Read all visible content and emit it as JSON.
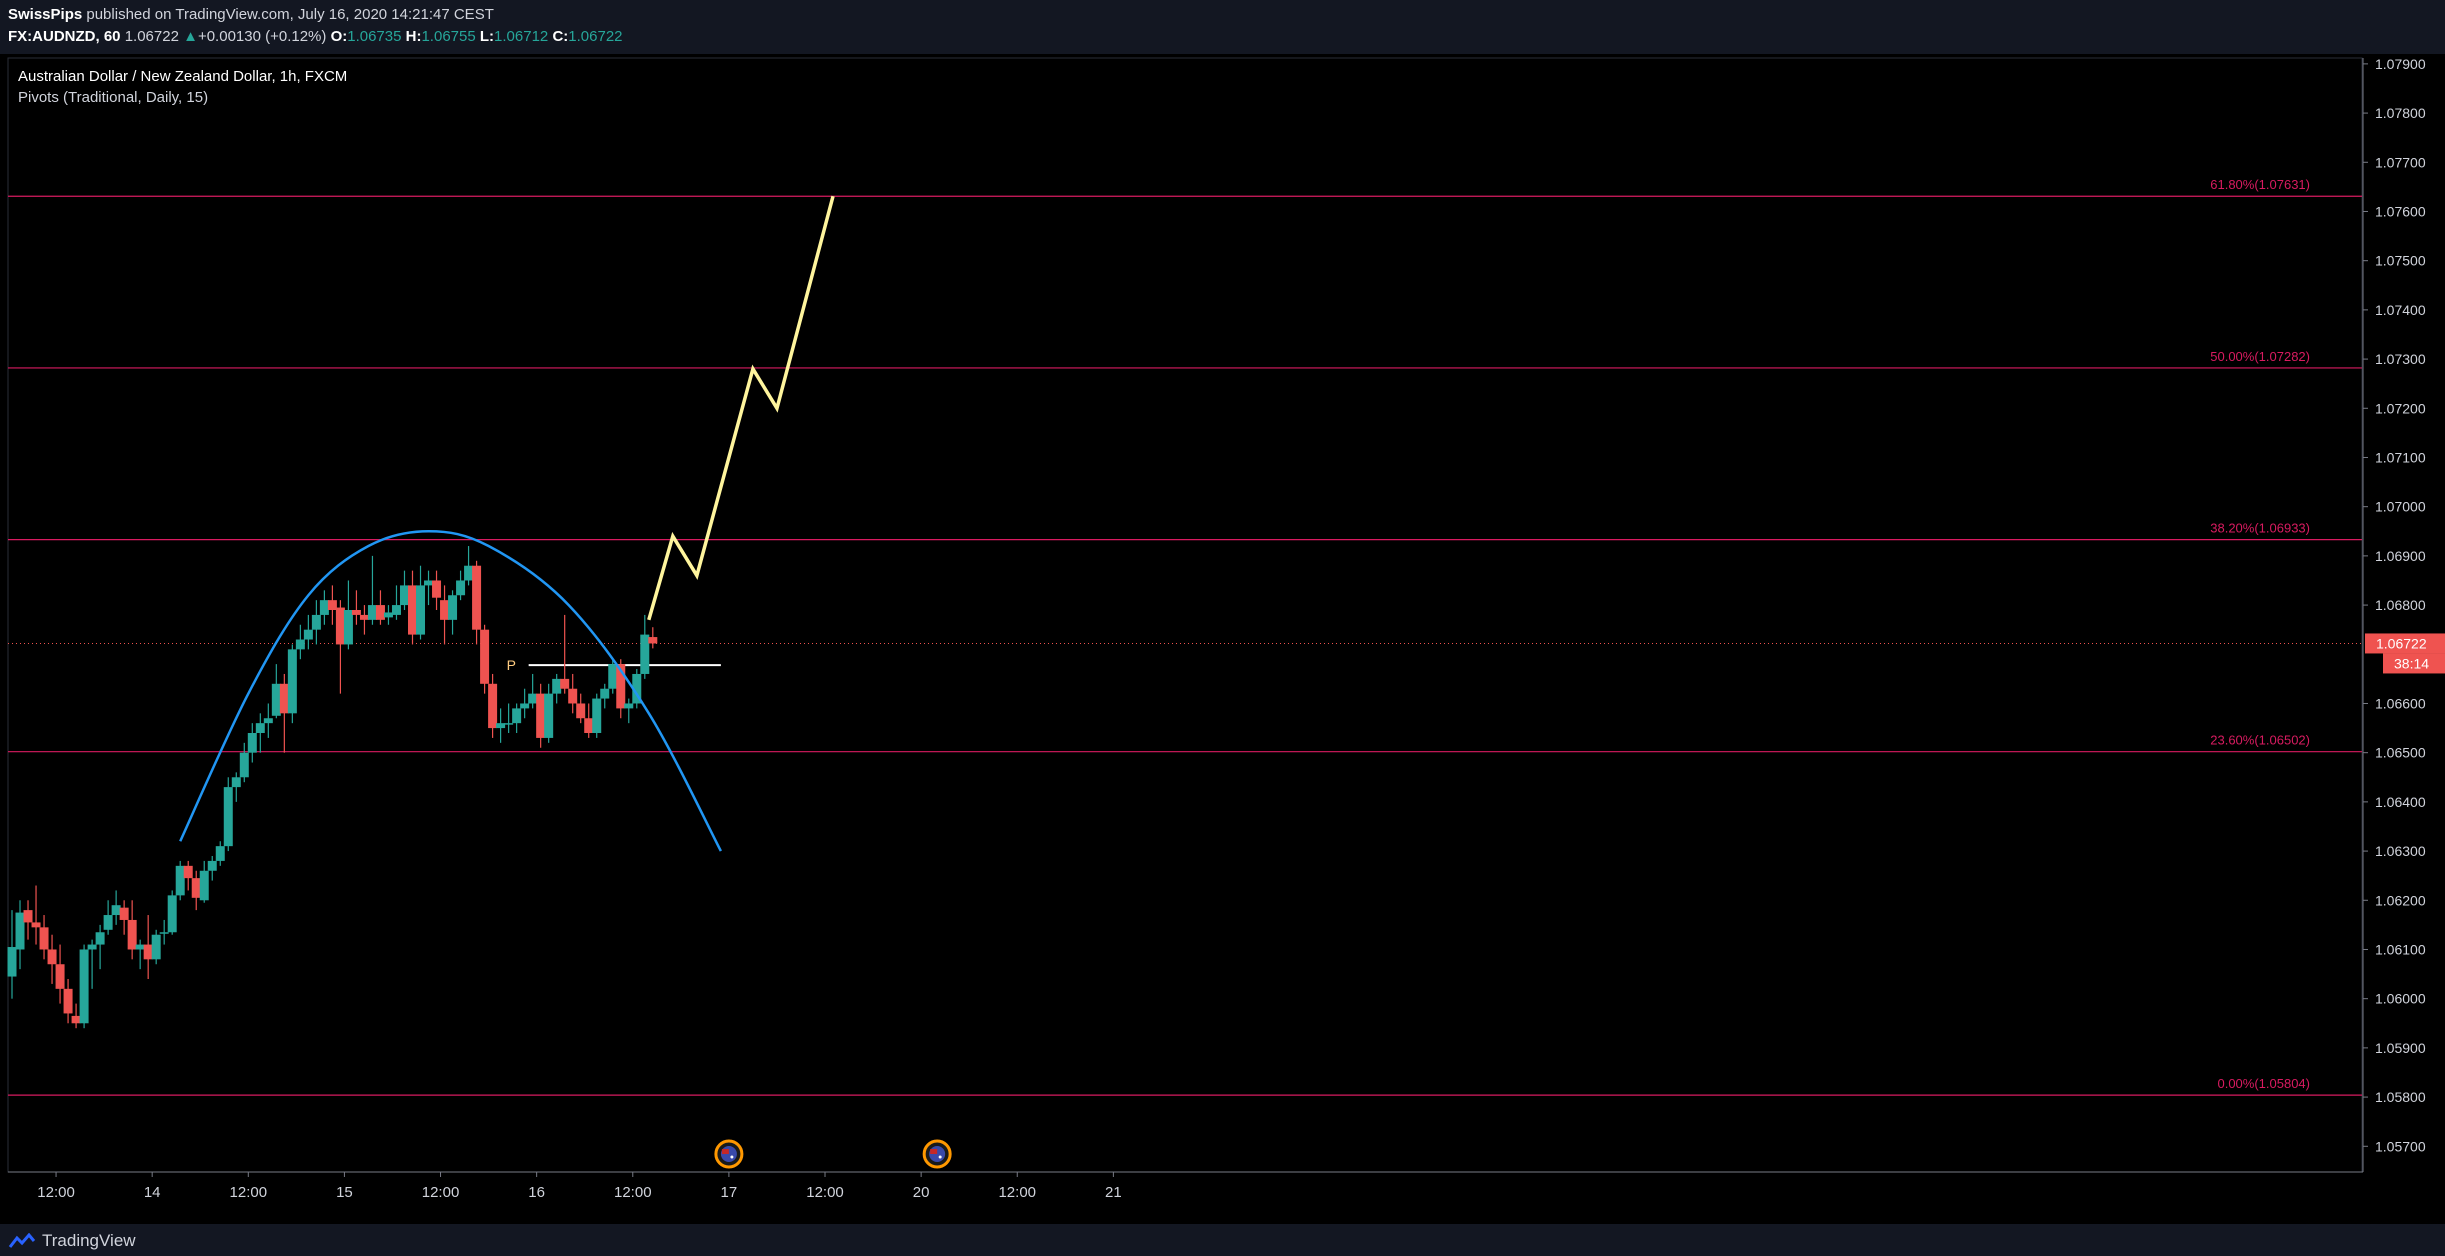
{
  "header": {
    "publisher_name": "SwissPips",
    "publisher_text": "published on TradingView.com, July 16, 2020 14:21:47 CEST",
    "symbol": "FX:AUDNZD, 60",
    "last": "1.06722",
    "change": "+0.00130 (+0.12%)",
    "open_label": "O:",
    "open": "1.06735",
    "high_label": "H:",
    "high": "1.06755",
    "low_label": "L:",
    "low": "1.06712",
    "close_label": "C:",
    "close": "1.06722"
  },
  "chart_title": "Australian Dollar / New Zealand Dollar, 1h, FXCM",
  "indicator_label": "Pivots (Traditional, Daily, 15)",
  "footer": {
    "brand": "TradingView"
  },
  "colors": {
    "background": "#000000",
    "up": "#26a69a",
    "down": "#ef5350",
    "fib": "#d81b60",
    "arc": "#2196f3",
    "projection": "#fff59d",
    "pivot": "#ffffff",
    "price_tag": "#ef5350"
  },
  "chart_data": {
    "type": "candlestick",
    "symbol": "AUDNZD",
    "timeframe": "1h",
    "ylim": [
      1.0566,
      1.0798
    ],
    "y_ticks": [
      "1.07900",
      "1.07800",
      "1.07700",
      "1.07600",
      "1.07500",
      "1.07400",
      "1.07300",
      "1.07200",
      "1.07100",
      "1.07000",
      "1.06900",
      "1.06800",
      "1.06600",
      "1.06500",
      "1.06400",
      "1.06300",
      "1.06200",
      "1.06100",
      "1.06000",
      "1.05900",
      "1.05800",
      "1.05700"
    ],
    "x_ticks": [
      {
        "label": "12:00",
        "t": 12
      },
      {
        "label": "14",
        "t": 36
      },
      {
        "label": "12:00",
        "t": 60
      },
      {
        "label": "15",
        "t": 84
      },
      {
        "label": "12:00",
        "t": 108
      },
      {
        "label": "16",
        "t": 132
      },
      {
        "label": "12:00",
        "t": 156
      },
      {
        "label": "17",
        "t": 180
      },
      {
        "label": "12:00",
        "t": 204
      },
      {
        "label": "20",
        "t": 228
      },
      {
        "label": "12:00",
        "t": 252
      },
      {
        "label": "21",
        "t": 276
      }
    ],
    "candles": [
      {
        "t": 1,
        "o": 1.06045,
        "h": 1.0618,
        "l": 1.06,
        "c": 1.06105
      },
      {
        "t": 3,
        "o": 1.061,
        "h": 1.062,
        "l": 1.0606,
        "c": 1.06175
      },
      {
        "t": 5,
        "o": 1.0618,
        "h": 1.062,
        "l": 1.0612,
        "c": 1.06155
      },
      {
        "t": 7,
        "o": 1.06155,
        "h": 1.0623,
        "l": 1.0611,
        "c": 1.06145
      },
      {
        "t": 9,
        "o": 1.06145,
        "h": 1.0617,
        "l": 1.0608,
        "c": 1.061
      },
      {
        "t": 11,
        "o": 1.061,
        "h": 1.0613,
        "l": 1.0603,
        "c": 1.0607
      },
      {
        "t": 13,
        "o": 1.0607,
        "h": 1.0611,
        "l": 1.0599,
        "c": 1.0602
      },
      {
        "t": 15,
        "o": 1.0602,
        "h": 1.0604,
        "l": 1.0595,
        "c": 1.0597
      },
      {
        "t": 17,
        "o": 1.05965,
        "h": 1.0599,
        "l": 1.0594,
        "c": 1.0595
      },
      {
        "t": 19,
        "o": 1.0595,
        "h": 1.0611,
        "l": 1.0594,
        "c": 1.061
      },
      {
        "t": 21,
        "o": 1.061,
        "h": 1.0612,
        "l": 1.0602,
        "c": 1.0611
      },
      {
        "t": 23,
        "o": 1.0611,
        "h": 1.0615,
        "l": 1.0606,
        "c": 1.06135
      },
      {
        "t": 25,
        "o": 1.0614,
        "h": 1.062,
        "l": 1.0613,
        "c": 1.0617
      },
      {
        "t": 27,
        "o": 1.0617,
        "h": 1.0622,
        "l": 1.0615,
        "c": 1.0619
      },
      {
        "t": 29,
        "o": 1.06185,
        "h": 1.062,
        "l": 1.0613,
        "c": 1.0616
      },
      {
        "t": 31,
        "o": 1.0616,
        "h": 1.062,
        "l": 1.0608,
        "c": 1.061
      },
      {
        "t": 33,
        "o": 1.061,
        "h": 1.0612,
        "l": 1.0606,
        "c": 1.0611
      },
      {
        "t": 35,
        "o": 1.0611,
        "h": 1.0617,
        "l": 1.0604,
        "c": 1.0608
      },
      {
        "t": 37,
        "o": 1.0608,
        "h": 1.0614,
        "l": 1.0607,
        "c": 1.0613
      },
      {
        "t": 39,
        "o": 1.06135,
        "h": 1.0616,
        "l": 1.0611,
        "c": 1.06135
      },
      {
        "t": 41,
        "o": 1.06135,
        "h": 1.0622,
        "l": 1.0613,
        "c": 1.0621
      },
      {
        "t": 43,
        "o": 1.0621,
        "h": 1.0628,
        "l": 1.062,
        "c": 1.0627
      },
      {
        "t": 45,
        "o": 1.0627,
        "h": 1.0628,
        "l": 1.0622,
        "c": 1.06245
      },
      {
        "t": 47,
        "o": 1.06245,
        "h": 1.0626,
        "l": 1.0618,
        "c": 1.06205
      },
      {
        "t": 49,
        "o": 1.062,
        "h": 1.0628,
        "l": 1.06195,
        "c": 1.0626
      },
      {
        "t": 51,
        "o": 1.0626,
        "h": 1.0629,
        "l": 1.0624,
        "c": 1.0628
      },
      {
        "t": 53,
        "o": 1.0628,
        "h": 1.0632,
        "l": 1.0627,
        "c": 1.0631
      },
      {
        "t": 55,
        "o": 1.0631,
        "h": 1.0645,
        "l": 1.063,
        "c": 1.0643
      },
      {
        "t": 57,
        "o": 1.0643,
        "h": 1.0646,
        "l": 1.064,
        "c": 1.0645
      },
      {
        "t": 59,
        "o": 1.0645,
        "h": 1.0652,
        "l": 1.0644,
        "c": 1.065
      },
      {
        "t": 61,
        "o": 1.065,
        "h": 1.0656,
        "l": 1.0648,
        "c": 1.0654
      },
      {
        "t": 63,
        "o": 1.0654,
        "h": 1.0658,
        "l": 1.065,
        "c": 1.0656
      },
      {
        "t": 65,
        "o": 1.0656,
        "h": 1.066,
        "l": 1.0653,
        "c": 1.0657
      },
      {
        "t": 67,
        "o": 1.06575,
        "h": 1.0668,
        "l": 1.0657,
        "c": 1.0664
      },
      {
        "t": 69,
        "o": 1.0664,
        "h": 1.0666,
        "l": 1.065,
        "c": 1.0658
      },
      {
        "t": 71,
        "o": 1.0658,
        "h": 1.0672,
        "l": 1.0656,
        "c": 1.0671
      },
      {
        "t": 73,
        "o": 1.0671,
        "h": 1.0676,
        "l": 1.0669,
        "c": 1.0673
      },
      {
        "t": 75,
        "o": 1.0673,
        "h": 1.0678,
        "l": 1.0671,
        "c": 1.0675
      },
      {
        "t": 77,
        "o": 1.0675,
        "h": 1.0681,
        "l": 1.0672,
        "c": 1.0678
      },
      {
        "t": 79,
        "o": 1.0678,
        "h": 1.0683,
        "l": 1.0676,
        "c": 1.0681
      },
      {
        "t": 81,
        "o": 1.0681,
        "h": 1.0684,
        "l": 1.0676,
        "c": 1.0679
      },
      {
        "t": 83,
        "o": 1.06795,
        "h": 1.0681,
        "l": 1.0662,
        "c": 1.0672
      },
      {
        "t": 85,
        "o": 1.0672,
        "h": 1.0685,
        "l": 1.0671,
        "c": 1.0679
      },
      {
        "t": 87,
        "o": 1.0679,
        "h": 1.0683,
        "l": 1.0676,
        "c": 1.0678
      },
      {
        "t": 89,
        "o": 1.0678,
        "h": 1.068,
        "l": 1.0674,
        "c": 1.0677
      },
      {
        "t": 91,
        "o": 1.0677,
        "h": 1.069,
        "l": 1.0676,
        "c": 1.068
      },
      {
        "t": 93,
        "o": 1.068,
        "h": 1.0683,
        "l": 1.0676,
        "c": 1.0677
      },
      {
        "t": 95,
        "o": 1.06775,
        "h": 1.068,
        "l": 1.0676,
        "c": 1.06785
      },
      {
        "t": 97,
        "o": 1.0678,
        "h": 1.0684,
        "l": 1.0677,
        "c": 1.068
      },
      {
        "t": 99,
        "o": 1.068,
        "h": 1.0687,
        "l": 1.0679,
        "c": 1.0684
      },
      {
        "t": 101,
        "o": 1.0684,
        "h": 1.0687,
        "l": 1.0672,
        "c": 1.0674
      },
      {
        "t": 103,
        "o": 1.0674,
        "h": 1.0688,
        "l": 1.0673,
        "c": 1.0684
      },
      {
        "t": 105,
        "o": 1.0684,
        "h": 1.0687,
        "l": 1.068,
        "c": 1.0685
      },
      {
        "t": 107,
        "o": 1.0685,
        "h": 1.0687,
        "l": 1.0679,
        "c": 1.06815
      },
      {
        "t": 109,
        "o": 1.0681,
        "h": 1.0684,
        "l": 1.0672,
        "c": 1.0677
      },
      {
        "t": 111,
        "o": 1.0677,
        "h": 1.0683,
        "l": 1.0674,
        "c": 1.0682
      },
      {
        "t": 113,
        "o": 1.0682,
        "h": 1.0687,
        "l": 1.0681,
        "c": 1.0685
      },
      {
        "t": 115,
        "o": 1.0685,
        "h": 1.0692,
        "l": 1.0684,
        "c": 1.0688
      },
      {
        "t": 117,
        "o": 1.0688,
        "h": 1.0689,
        "l": 1.0672,
        "c": 1.0675
      },
      {
        "t": 119,
        "o": 1.0675,
        "h": 1.0676,
        "l": 1.0662,
        "c": 1.0664
      },
      {
        "t": 121,
        "o": 1.0664,
        "h": 1.0666,
        "l": 1.0653,
        "c": 1.0655
      },
      {
        "t": 123,
        "o": 1.0655,
        "h": 1.0659,
        "l": 1.0652,
        "c": 1.0656
      },
      {
        "t": 125,
        "o": 1.0656,
        "h": 1.066,
        "l": 1.0654,
        "c": 1.0656
      },
      {
        "t": 127,
        "o": 1.0656,
        "h": 1.066,
        "l": 1.0654,
        "c": 1.0659
      },
      {
        "t": 129,
        "o": 1.0659,
        "h": 1.0663,
        "l": 1.0657,
        "c": 1.066
      },
      {
        "t": 131,
        "o": 1.066,
        "h": 1.0666,
        "l": 1.0659,
        "c": 1.0662
      },
      {
        "t": 133,
        "o": 1.0662,
        "h": 1.0664,
        "l": 1.0651,
        "c": 1.0653
      },
      {
        "t": 135,
        "o": 1.0653,
        "h": 1.0664,
        "l": 1.0652,
        "c": 1.0662
      },
      {
        "t": 137,
        "o": 1.0662,
        "h": 1.0666,
        "l": 1.066,
        "c": 1.0665
      },
      {
        "t": 139,
        "o": 1.0665,
        "h": 1.0678,
        "l": 1.0662,
        "c": 1.0663
      },
      {
        "t": 141,
        "o": 1.0663,
        "h": 1.0666,
        "l": 1.0658,
        "c": 1.066
      },
      {
        "t": 143,
        "o": 1.066,
        "h": 1.0662,
        "l": 1.0656,
        "c": 1.0657
      },
      {
        "t": 145,
        "o": 1.0657,
        "h": 1.066,
        "l": 1.0653,
        "c": 1.0654
      },
      {
        "t": 147,
        "o": 1.0654,
        "h": 1.0662,
        "l": 1.0653,
        "c": 1.0661
      },
      {
        "t": 149,
        "o": 1.0661,
        "h": 1.0664,
        "l": 1.0659,
        "c": 1.0663
      },
      {
        "t": 151,
        "o": 1.0663,
        "h": 1.0669,
        "l": 1.0662,
        "c": 1.0668
      },
      {
        "t": 153,
        "o": 1.0668,
        "h": 1.0669,
        "l": 1.0657,
        "c": 1.0659
      },
      {
        "t": 155,
        "o": 1.0659,
        "h": 1.0661,
        "l": 1.0656,
        "c": 1.066
      },
      {
        "t": 157,
        "o": 1.066,
        "h": 1.0667,
        "l": 1.0659,
        "c": 1.0666
      },
      {
        "t": 159,
        "o": 1.0666,
        "h": 1.0678,
        "l": 1.0665,
        "c": 1.0674
      },
      {
        "t": 161,
        "o": 1.06735,
        "h": 1.06755,
        "l": 1.06712,
        "c": 1.06722
      }
    ],
    "fib_levels": [
      {
        "label": "61.80%(1.07631)",
        "value": 1.07631
      },
      {
        "label": "50.00%(1.07282)",
        "value": 1.07282
      },
      {
        "label": "38.20%(1.06933)",
        "value": 1.06933
      },
      {
        "label": "23.60%(1.06502)",
        "value": 1.06502
      },
      {
        "label": "0.00%(1.05804)",
        "value": 1.05804
      }
    ],
    "pivot": {
      "label": "P",
      "value": 1.06678,
      "t_start": 130,
      "t_end": 178
    },
    "current_price": {
      "value": 1.06722,
      "label": "1.06722",
      "countdown": "38:14"
    },
    "arc": [
      {
        "t": 43,
        "y": 1.0632
      },
      {
        "t": 60,
        "y": 1.0662
      },
      {
        "t": 75,
        "y": 1.0682
      },
      {
        "t": 90,
        "y": 1.0692
      },
      {
        "t": 105,
        "y": 1.0695
      },
      {
        "t": 120,
        "y": 1.0692
      },
      {
        "t": 140,
        "y": 1.068
      },
      {
        "t": 160,
        "y": 1.0658
      },
      {
        "t": 178,
        "y": 1.063
      }
    ],
    "projection": [
      {
        "t": 160,
        "y": 1.0677
      },
      {
        "t": 166,
        "y": 1.0694
      },
      {
        "t": 172,
        "y": 1.0686
      },
      {
        "t": 186,
        "y": 1.0728
      },
      {
        "t": 192,
        "y": 1.072
      },
      {
        "t": 206,
        "y": 1.07631
      }
    ],
    "event_markers": [
      {
        "t": 180
      },
      {
        "t": 232
      }
    ]
  }
}
